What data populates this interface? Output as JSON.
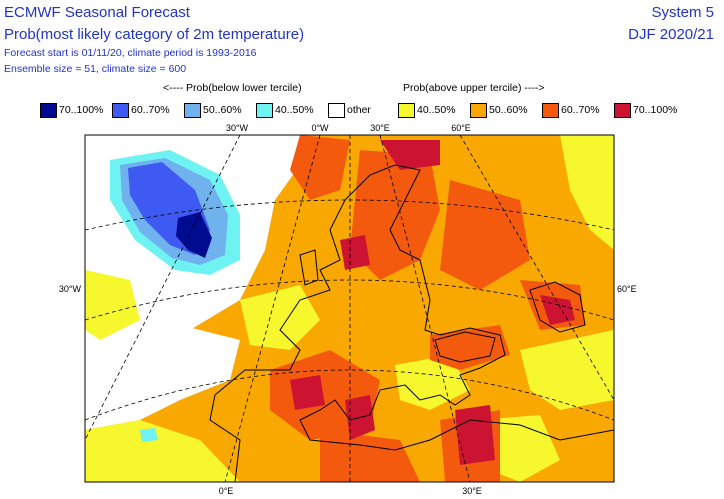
{
  "header": {
    "title": "ECMWF Seasonal Forecast",
    "subtitle": "Prob(most likely category of 2m temperature)",
    "line1": "Forecast start is 01/11/20, climate period is 1993-2016",
    "line2": "Ensemble size = 51, climate size = 600",
    "system": "System 5",
    "season": "DJF 2020/21"
  },
  "legend": {
    "left_heading": "<---- Prob(below lower tercile)",
    "right_heading": "Prob(above upper tercile) ---->",
    "items": [
      {
        "label": "70..100%",
        "color": "#000c8f"
      },
      {
        "label": "60..70%",
        "color": "#3e5af2"
      },
      {
        "label": "50..60%",
        "color": "#6fb2ee"
      },
      {
        "label": "40..50%",
        "color": "#6ef2f2"
      },
      {
        "label": "other",
        "color": "#ffffff"
      },
      {
        "label": "40..50%",
        "color": "#f7f72e"
      },
      {
        "label": "50..60%",
        "color": "#f8a800"
      },
      {
        "label": "60..70%",
        "color": "#f45a0e"
      },
      {
        "label": "70..100%",
        "color": "#cc1432"
      }
    ]
  },
  "map": {
    "top_labels": [
      "30°W",
      "0°W",
      "30°E",
      "60°E"
    ],
    "left_label": "30°W",
    "right_label": "60°E",
    "bottom_labels": [
      "0°E",
      "30°E"
    ]
  }
}
